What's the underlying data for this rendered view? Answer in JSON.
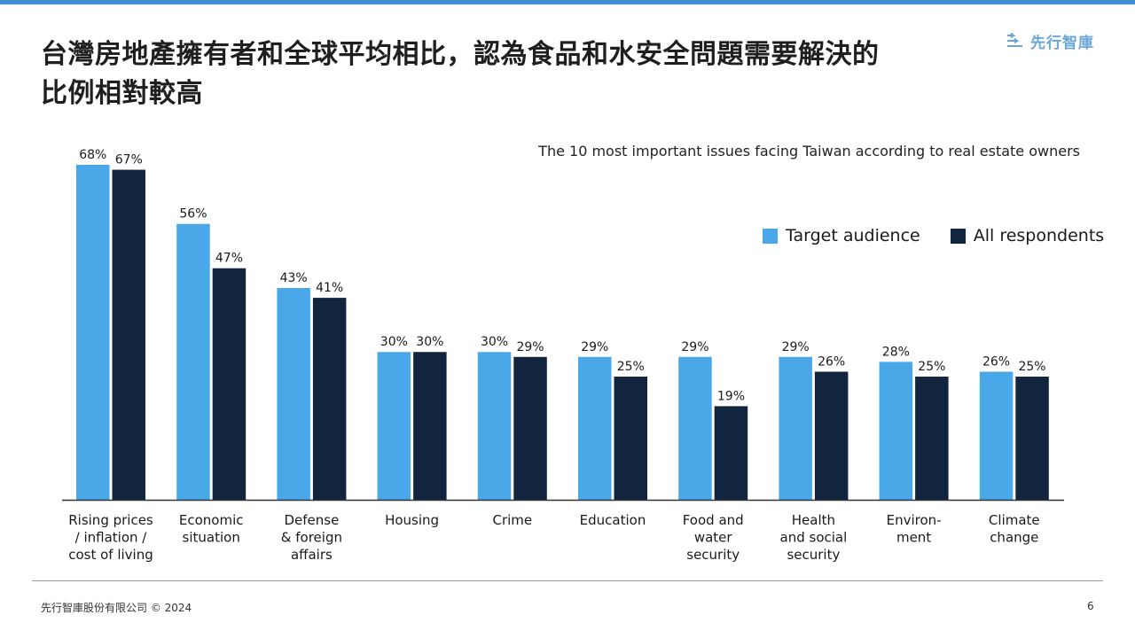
{
  "slide": {
    "title_lines": [
      "台灣房地產擁有者和全球平均相比，認為食品和水安全問題需要解決的",
      "比例相對較高"
    ],
    "logo_text": "先行智庫",
    "footer_left": "先行智庫股份有限公司 © 2024",
    "page_number": "6"
  },
  "colors": {
    "target": "#4aa8e8",
    "all": "#12253f",
    "accent_bar": "#3d8fd6"
  },
  "chart_data": {
    "type": "bar",
    "subtitle": "The 10 most important issues facing Taiwan according to real estate owners",
    "categories": [
      [
        "Rising prices",
        "/ inflation /",
        "cost of living"
      ],
      [
        "Economic",
        "situation"
      ],
      [
        "Defense",
        "& foreign",
        "affairs"
      ],
      [
        "Housing"
      ],
      [
        "Crime"
      ],
      [
        "Education"
      ],
      [
        "Food and",
        "water",
        "security"
      ],
      [
        "Health",
        "and social",
        "security"
      ],
      [
        "Environ-",
        "ment"
      ],
      [
        "Climate",
        "change"
      ]
    ],
    "series": [
      {
        "name": "Target audience",
        "values": [
          68,
          56,
          43,
          30,
          30,
          29,
          29,
          29,
          28,
          26
        ]
      },
      {
        "name": "All respondents",
        "values": [
          67,
          47,
          41,
          30,
          29,
          25,
          19,
          26,
          25,
          25
        ]
      }
    ],
    "value_suffix": "%",
    "ylim": [
      0,
      68
    ],
    "legend_position": "top-right",
    "grid": false
  }
}
